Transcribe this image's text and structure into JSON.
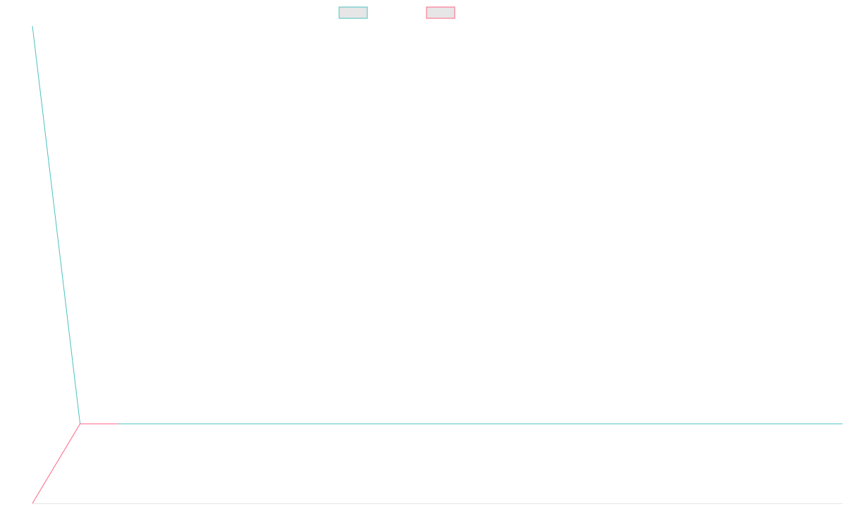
{
  "chart_data": {
    "type": "line",
    "title": "",
    "xlabel": "",
    "ylabel": "",
    "grid": false,
    "legend": "top-center",
    "colors": {
      "series_a": "#4bc0c0",
      "series_b": "#ff6384",
      "swatch_fill": "#e6e6e6",
      "baseline": "#e6e6e6"
    },
    "series": [
      {
        "legend_label": "",
        "color": "#4bc0c0",
        "values": [
          1.0,
          0.0,
          0.0
        ],
        "x": [
          0,
          1,
          17
        ]
      },
      {
        "legend_label": "",
        "color": "#ff6384",
        "values": [
          -0.2,
          0.0,
          0.0
        ],
        "x": [
          0,
          1,
          1.8
        ]
      }
    ],
    "xlim": [
      0,
      17
    ],
    "ylim": [
      -0.2,
      1.0
    ]
  }
}
